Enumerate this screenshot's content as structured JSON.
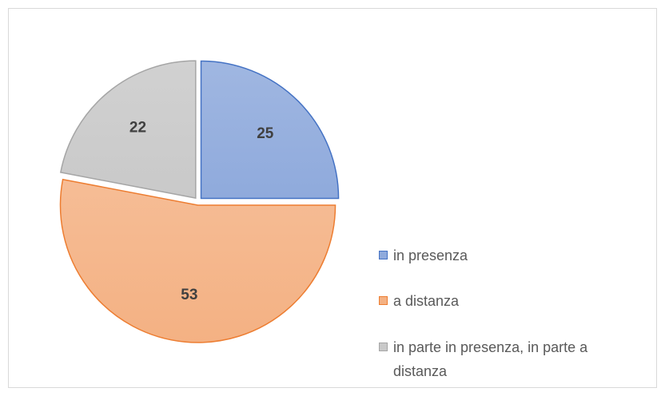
{
  "chart_data": {
    "type": "pie",
    "categories": [
      "in presenza",
      "a distanza",
      "in parte in presenza, in parte a distanza"
    ],
    "values": [
      25,
      53,
      22
    ],
    "colors": [
      "#8faadc",
      "#f4b183",
      "#c9c9c9"
    ],
    "legend": "right"
  }
}
